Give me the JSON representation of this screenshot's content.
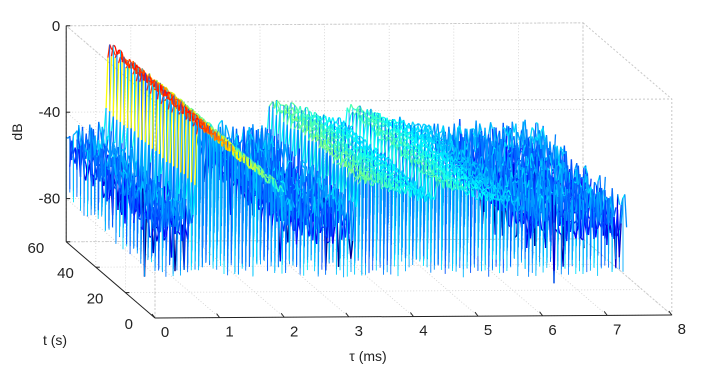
{
  "chart_data": {
    "type": "surface",
    "title": "",
    "xlabel": "τ (ms)",
    "ylabel": "t (s)",
    "zlabel": "dB",
    "x_ticks": [
      "0",
      "1",
      "2",
      "3",
      "4",
      "5",
      "6",
      "7",
      "8"
    ],
    "y_ticks": [
      "0",
      "20",
      "40",
      "60"
    ],
    "z_ticks": [
      "0",
      "-40",
      "-80"
    ],
    "xlim": [
      0,
      8
    ],
    "ylim": [
      0,
      60
    ],
    "zlim": [
      -100,
      0
    ],
    "noise_floor_db": -55,
    "colormap": "jet",
    "grid": true,
    "peaks": [
      {
        "tau_ms": 0.6,
        "db_start": -8,
        "db_end": -42
      },
      {
        "tau_ms": 3.1,
        "db_start": -35,
        "db_end": -48
      },
      {
        "tau_ms": 4.3,
        "db_start": -38,
        "db_end": -50
      }
    ]
  }
}
